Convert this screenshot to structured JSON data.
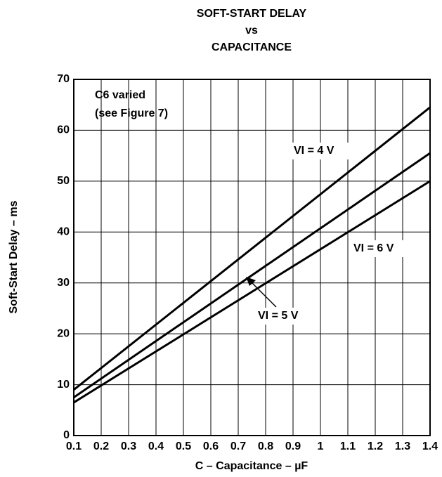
{
  "chart_data": {
    "type": "line",
    "title": [
      "SOFT-START DELAY",
      "vs",
      "CAPACITANCE"
    ],
    "xlabel": "C – Capacitance – µF",
    "ylabel": "Soft-Start Delay – ms",
    "annotations": [
      "C6 varied",
      "(see Figure 7)"
    ],
    "xlim": [
      0.1,
      1.4
    ],
    "ylim": [
      0,
      70
    ],
    "xticks": [
      0.1,
      0.2,
      0.3,
      0.4,
      0.5,
      0.6,
      0.7,
      0.8,
      0.9,
      1,
      1.1,
      1.2,
      1.3,
      1.4
    ],
    "yticks": [
      0,
      10,
      20,
      30,
      40,
      50,
      60,
      70
    ],
    "grid": true,
    "series": [
      {
        "name": "VI = 4 V",
        "color": "#000000",
        "x": [
          0.1,
          1.4
        ],
        "values": [
          9,
          64.5
        ]
      },
      {
        "name": "VI = 5 V",
        "color": "#000000",
        "x": [
          0.1,
          1.4
        ],
        "values": [
          7.5,
          55.5
        ]
      },
      {
        "name": "VI = 6 V",
        "color": "#000000",
        "x": [
          0.1,
          1.4
        ],
        "values": [
          6.5,
          50
        ]
      }
    ]
  }
}
